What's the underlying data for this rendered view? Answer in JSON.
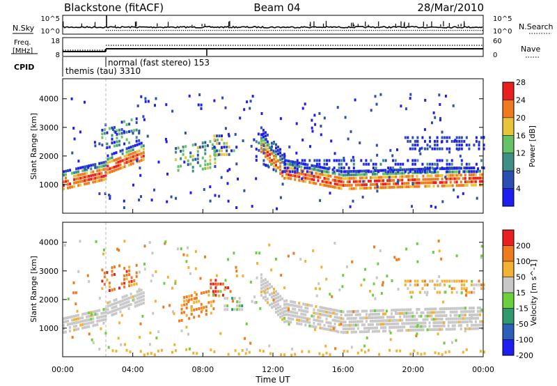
{
  "header": {
    "station": "Blackstone (fitACF)",
    "beam": "Beam 04",
    "date": "28/Mar/2010"
  },
  "top_panels": {
    "nsky_label": "N.Sky",
    "nsky_ticks": [
      "10^5",
      "10^0"
    ],
    "nsky_right_ticks": [
      "10^5",
      "10^0"
    ],
    "nsearch_label": "N.Search",
    "freq_label_1": "Freq.",
    "freq_label_2": "[MHz]",
    "freq_ticks": [
      "18",
      "8"
    ],
    "nave_ticks": [
      "60",
      "0"
    ],
    "nave_label": "Nave",
    "cpid_label": "CPID",
    "cpid_mode_1": "themis (tau) 3310",
    "cpid_mode_2": "normal (fast stereo) 153"
  },
  "chart_data": [
    {
      "type": "heatmap",
      "name": "power",
      "ylabel": "Slant Range [km]",
      "yticks": [
        "1000",
        "2000",
        "3000",
        "4000"
      ],
      "colorbar_label": "Power [dB]",
      "colorbar_ticks": [
        "4",
        "8",
        "12",
        "16",
        "20",
        "24",
        "28"
      ],
      "colors": [
        "#1e1ef0",
        "#2a4fb0",
        "#3f8f86",
        "#66c266",
        "#e8c43a",
        "#f07a1e",
        "#e82020"
      ]
    },
    {
      "type": "heatmap",
      "name": "velocity",
      "ylabel": "Slant Range [km]",
      "yticks": [
        "1000",
        "2000",
        "3000",
        "4000"
      ],
      "colorbar_label": "Velocity [m s^-1]",
      "colorbar_ticks": [
        "200",
        "100",
        "50",
        "15",
        "-15",
        "-50",
        "-100",
        "-200"
      ],
      "colors": [
        "#1e1ef0",
        "#2e5fb8",
        "#2e9a6e",
        "#6ccf3c",
        "#c8c8c8",
        "#f2b233",
        "#f07a1e",
        "#e82020"
      ]
    }
  ],
  "x_axis": {
    "label": "Time UT",
    "ticks": [
      "00:00",
      "04:00",
      "08:00",
      "12:00",
      "16:00",
      "20:00",
      "00:00"
    ]
  }
}
